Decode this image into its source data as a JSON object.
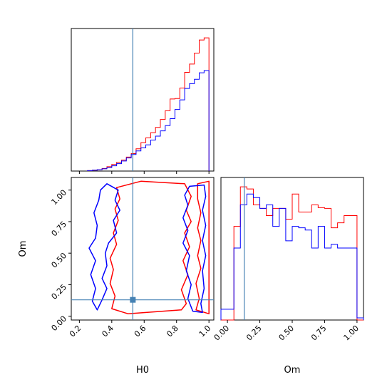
{
  "chart_data": {
    "type": "corner",
    "parameters": [
      "H0",
      "Om"
    ],
    "truth": {
      "H0": 0.53,
      "Om": 0.13
    },
    "colors": {
      "red": "#ff0000",
      "blue": "#0000ff",
      "truth": "#4682b4"
    },
    "panels": {
      "H0_hist": {
        "type": "histogram",
        "bin_edges": [
          0.25,
          0.28,
          0.31,
          0.34,
          0.37,
          0.4,
          0.43,
          0.46,
          0.49,
          0.52,
          0.55,
          0.58,
          0.61,
          0.64,
          0.67,
          0.7,
          0.73,
          0.76,
          0.79,
          0.82,
          0.85,
          0.88,
          0.91,
          0.94,
          0.97,
          1.0
        ],
        "series": [
          {
            "color": "red",
            "counts": [
              0.1,
              0.2,
              0.3,
              0.6,
              1.0,
              1.5,
              2.0,
              2.5,
              3.2,
              4.0,
              5.1,
              6.5,
              7.6,
              8.8,
              10.0,
              11.8,
              13.8,
              16.5,
              16.6,
              19.0,
              22.6,
              24.5,
              27.0,
              30.0,
              30.5
            ]
          },
          {
            "color": "blue",
            "counts": [
              0.1,
              0.2,
              0.3,
              0.5,
              0.8,
              1.2,
              1.7,
              2.3,
              3.0,
              3.8,
              4.6,
              5.3,
              6.0,
              7.1,
              8.0,
              9.2,
              10.4,
              12.0,
              14.1,
              16.3,
              18.9,
              20.0,
              21.0,
              22.5,
              23.0
            ]
          }
        ],
        "xlim": [
          0.15,
          1.03
        ]
      },
      "Om_hist": {
        "type": "histogram",
        "bin_edges": [
          -0.05,
          0.0,
          0.05,
          0.1,
          0.15,
          0.2,
          0.25,
          0.3,
          0.35,
          0.4,
          0.45,
          0.5,
          0.55,
          0.6,
          0.65,
          0.7,
          0.75,
          0.8,
          0.85,
          0.9,
          0.95,
          1.0,
          1.05
        ],
        "series": [
          {
            "color": "red",
            "counts": [
              0,
              0,
              13.0,
              18.5,
              18.2,
              16.0,
              15.5,
              14.5,
              15.5,
              15.5,
              14.0,
              17.5,
              15.0,
              15.0,
              16.0,
              15.6,
              15.5,
              12.8,
              13.5,
              14.5,
              14.5,
              0
            ]
          },
          {
            "color": "blue",
            "counts": [
              1.5,
              1.5,
              10.0,
              16.0,
              17.5,
              17.0,
              15.5,
              16.0,
              13.0,
              15.5,
              11.0,
              13.0,
              12.8,
              12.5,
              10.0,
              13.0,
              10.0,
              10.5,
              10.0,
              10.0,
              10.0,
              0.3
            ]
          }
        ],
        "xlim": [
          -0.05,
          1.05
        ],
        "xticks": [
          "0.00",
          "0.25",
          "0.50",
          "0.75",
          "1.00"
        ]
      },
      "H0_Om_contour": {
        "type": "contour",
        "xlim": [
          0.15,
          1.03
        ],
        "ylim": [
          -0.03,
          1.1
        ],
        "xticks": [
          "0.2",
          "0.4",
          "0.6",
          "0.8",
          "1.0"
        ],
        "yticks": [
          "0.00",
          "0.25",
          "0.50",
          "0.75",
          "1.00"
        ],
        "contours": [
          {
            "color": "red",
            "points": [
              [
                0.43,
                1.02
              ],
              [
                0.58,
                1.07
              ],
              [
                0.85,
                1.05
              ],
              [
                0.89,
                0.95
              ],
              [
                0.86,
                0.84
              ],
              [
                0.89,
                0.75
              ],
              [
                0.85,
                0.66
              ],
              [
                0.88,
                0.55
              ],
              [
                0.84,
                0.44
              ],
              [
                0.87,
                0.33
              ],
              [
                0.83,
                0.21
              ],
              [
                0.86,
                0.1
              ],
              [
                0.83,
                0.05
              ],
              [
                0.5,
                0.02
              ],
              [
                0.4,
                0.06
              ],
              [
                0.42,
                0.16
              ],
              [
                0.39,
                0.26
              ],
              [
                0.41,
                0.37
              ],
              [
                0.39,
                0.46
              ],
              [
                0.43,
                0.57
              ],
              [
                0.41,
                0.66
              ],
              [
                0.44,
                0.76
              ],
              [
                0.42,
                0.85
              ],
              [
                0.45,
                0.93
              ]
            ]
          },
          {
            "color": "red",
            "points": [
              [
                0.93,
                1.05
              ],
              [
                1.0,
                1.07
              ],
              [
                1.0,
                0.02
              ],
              [
                0.92,
                0.05
              ],
              [
                0.94,
                0.14
              ],
              [
                0.92,
                0.26
              ],
              [
                0.95,
                0.38
              ],
              [
                0.93,
                0.48
              ],
              [
                0.95,
                0.6
              ],
              [
                0.93,
                0.7
              ],
              [
                0.95,
                0.82
              ],
              [
                0.93,
                0.93
              ]
            ]
          },
          {
            "color": "blue",
            "points": [
              [
                0.33,
                1.0
              ],
              [
                0.37,
                1.05
              ],
              [
                0.44,
                1.0
              ],
              [
                0.42,
                0.92
              ],
              [
                0.45,
                0.84
              ],
              [
                0.41,
                0.76
              ],
              [
                0.43,
                0.66
              ],
              [
                0.38,
                0.58
              ],
              [
                0.36,
                0.5
              ],
              [
                0.37,
                0.4
              ],
              [
                0.34,
                0.3
              ],
              [
                0.37,
                0.22
              ],
              [
                0.34,
                0.13
              ],
              [
                0.31,
                0.05
              ],
              [
                0.28,
                0.12
              ],
              [
                0.3,
                0.22
              ],
              [
                0.27,
                0.33
              ],
              [
                0.3,
                0.44
              ],
              [
                0.26,
                0.54
              ],
              [
                0.3,
                0.62
              ],
              [
                0.31,
                0.72
              ],
              [
                0.29,
                0.82
              ],
              [
                0.32,
                0.92
              ]
            ]
          },
          {
            "color": "blue",
            "points": [
              [
                0.88,
                1.03
              ],
              [
                0.97,
                1.04
              ],
              [
                0.98,
                0.95
              ],
              [
                0.96,
                0.84
              ],
              [
                0.98,
                0.72
              ],
              [
                0.96,
                0.6
              ],
              [
                0.98,
                0.48
              ],
              [
                0.96,
                0.36
              ],
              [
                0.97,
                0.22
              ],
              [
                0.95,
                0.1
              ],
              [
                0.96,
                0.03
              ],
              [
                0.9,
                0.04
              ],
              [
                0.87,
                0.14
              ],
              [
                0.89,
                0.25
              ],
              [
                0.86,
                0.36
              ],
              [
                0.88,
                0.48
              ],
              [
                0.84,
                0.58
              ],
              [
                0.87,
                0.68
              ],
              [
                0.84,
                0.78
              ],
              [
                0.87,
                0.88
              ],
              [
                0.85,
                0.96
              ]
            ]
          }
        ]
      }
    },
    "xlabel_H0": "H0",
    "xlabel_Om": "Om",
    "ylabel_Om": "Om"
  }
}
